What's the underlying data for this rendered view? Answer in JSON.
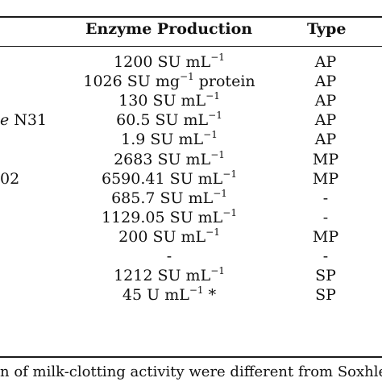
{
  "table": {
    "headers": {
      "enzyme": "Enzyme Production",
      "type": "Type"
    },
    "rows": [
      {
        "org_italic": "",
        "org_rest": "",
        "enz": "1200 SU mL",
        "sup": "−1",
        "enz_after": "",
        "type": "AP"
      },
      {
        "org_italic": "",
        "org_rest": "",
        "enz": "1026 SU mg",
        "sup": "−1",
        "enz_after": " protein",
        "type": "AP"
      },
      {
        "org_italic": "",
        "org_rest": "",
        "enz": "130 SU mL",
        "sup": "−1",
        "enz_after": "",
        "type": "AP"
      },
      {
        "org_italic": "e",
        "org_rest": " N31",
        "enz": "60.5 SU mL",
        "sup": "−1",
        "enz_after": "",
        "type": "AP"
      },
      {
        "org_italic": "",
        "org_rest": "",
        "enz": "1.9 SU mL",
        "sup": "−1",
        "enz_after": "",
        "type": "AP"
      },
      {
        "org_italic": "",
        "org_rest": "",
        "enz": "2683 SU mL",
        "sup": "−1",
        "enz_after": "",
        "type": "MP"
      },
      {
        "org_italic": "",
        "org_rest": "02",
        "enz": "6590.41 SU mL",
        "sup": "−1",
        "enz_after": "",
        "type": "MP"
      },
      {
        "org_italic": "",
        "org_rest": "",
        "enz": "685.7 SU mL",
        "sup": "−1",
        "enz_after": "",
        "type": "-"
      },
      {
        "org_italic": "",
        "org_rest": "",
        "enz": "1129.05 SU mL",
        "sup": "−1",
        "enz_after": "",
        "type": "-"
      },
      {
        "org_italic": "",
        "org_rest": "",
        "enz": "200 SU mL",
        "sup": "−1",
        "enz_after": "",
        "type": "MP"
      },
      {
        "org_italic": "",
        "org_rest": "",
        "enz": "-",
        "sup": "",
        "enz_after": "",
        "type": "-"
      },
      {
        "org_italic": "",
        "org_rest": "",
        "enz": "1212 SU mL",
        "sup": "−1",
        "enz_after": "",
        "type": "SP"
      },
      {
        "org_italic": "",
        "org_rest": "",
        "enz": "45 U mL",
        "sup": "−1",
        "enz_after": " *",
        "type": "SP"
      }
    ]
  },
  "footnote": "n of milk-clotting activity were different from Soxhlet"
}
